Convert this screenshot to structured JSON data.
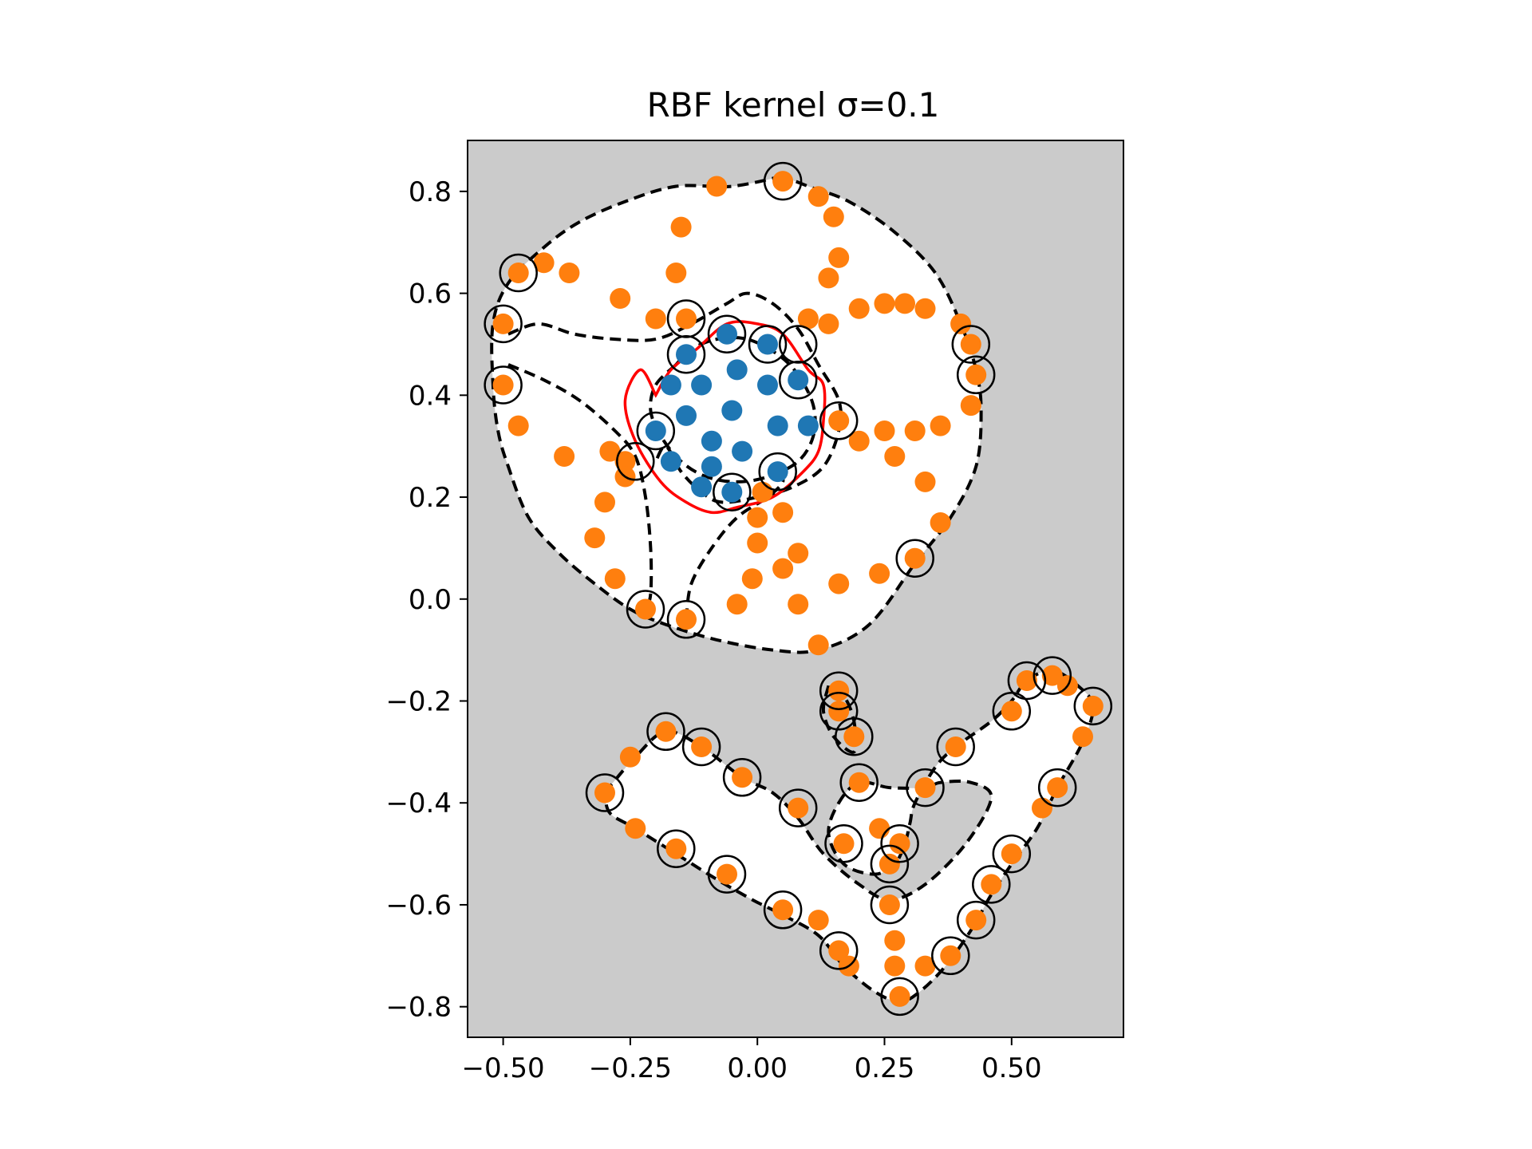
{
  "chart_data": {
    "type": "scatter",
    "title": "RBF kernel σ=0.1",
    "xlabel": "",
    "ylabel": "",
    "xlim": [
      -0.57,
      0.72
    ],
    "ylim": [
      -0.86,
      0.9
    ],
    "xticks": [
      -0.5,
      -0.25,
      0.0,
      0.25,
      0.5
    ],
    "xtick_labels": [
      "−0.50",
      "−0.25",
      "0.00",
      "0.25",
      "0.50"
    ],
    "yticks": [
      0.8,
      0.6,
      0.4,
      0.2,
      0.0,
      -0.2,
      -0.4,
      -0.6,
      -0.8
    ],
    "ytick_labels": [
      "0.8",
      "0.6",
      "0.4",
      "0.2",
      "0.0",
      "−0.2",
      "−0.4",
      "−0.6",
      "−0.8"
    ],
    "grid": false,
    "legend": "none",
    "colors": {
      "background": "#cbcbcb",
      "region_inside": "#ffffff",
      "class_inner": "#1f77b4",
      "class_outer": "#ff7f0e",
      "decision_boundary": "#ff0000",
      "margin_contour": "#000000",
      "support_vector_ring": "#000000"
    },
    "series": [
      {
        "class": "inner",
        "points": [
          [
            -0.06,
            0.52
          ],
          [
            0.02,
            0.5
          ],
          [
            -0.14,
            0.48
          ],
          [
            -0.04,
            0.45
          ],
          [
            0.08,
            0.43
          ],
          [
            -0.17,
            0.42
          ],
          [
            -0.11,
            0.42
          ],
          [
            0.02,
            0.42
          ],
          [
            -0.14,
            0.36
          ],
          [
            -0.05,
            0.37
          ],
          [
            0.1,
            0.34
          ],
          [
            -0.2,
            0.33
          ],
          [
            0.04,
            0.34
          ],
          [
            -0.09,
            0.31
          ],
          [
            -0.03,
            0.29
          ],
          [
            -0.17,
            0.27
          ],
          [
            -0.09,
            0.26
          ],
          [
            0.04,
            0.25
          ],
          [
            -0.11,
            0.22
          ],
          [
            -0.05,
            0.21
          ]
        ]
      },
      {
        "class": "outer_ring",
        "points": [
          [
            0.05,
            0.82
          ],
          [
            -0.08,
            0.81
          ],
          [
            0.12,
            0.79
          ],
          [
            0.15,
            0.75
          ],
          [
            -0.15,
            0.73
          ],
          [
            0.16,
            0.67
          ],
          [
            -0.42,
            0.66
          ],
          [
            -0.47,
            0.64
          ],
          [
            -0.37,
            0.64
          ],
          [
            -0.16,
            0.64
          ],
          [
            0.14,
            0.63
          ],
          [
            -0.27,
            0.59
          ],
          [
            0.25,
            0.58
          ],
          [
            0.29,
            0.58
          ],
          [
            0.2,
            0.57
          ],
          [
            0.33,
            0.57
          ],
          [
            -0.5,
            0.54
          ],
          [
            -0.2,
            0.55
          ],
          [
            -0.14,
            0.55
          ],
          [
            0.1,
            0.55
          ],
          [
            0.14,
            0.54
          ],
          [
            0.4,
            0.54
          ],
          [
            0.42,
            0.5
          ],
          [
            0.43,
            0.44
          ],
          [
            -0.5,
            0.42
          ],
          [
            0.42,
            0.38
          ],
          [
            0.16,
            0.35
          ],
          [
            -0.47,
            0.34
          ],
          [
            0.31,
            0.33
          ],
          [
            0.36,
            0.34
          ],
          [
            0.25,
            0.33
          ],
          [
            0.2,
            0.31
          ],
          [
            -0.38,
            0.28
          ],
          [
            -0.29,
            0.29
          ],
          [
            -0.26,
            0.27
          ],
          [
            0.27,
            0.28
          ],
          [
            -0.26,
            0.24
          ],
          [
            0.33,
            0.23
          ],
          [
            0.01,
            0.21
          ],
          [
            -0.3,
            0.19
          ],
          [
            0.05,
            0.17
          ],
          [
            0.0,
            0.16
          ],
          [
            0.36,
            0.15
          ],
          [
            -0.32,
            0.12
          ],
          [
            0.0,
            0.11
          ],
          [
            0.08,
            0.09
          ],
          [
            0.31,
            0.08
          ],
          [
            0.05,
            0.06
          ],
          [
            -0.28,
            0.04
          ],
          [
            -0.01,
            0.04
          ],
          [
            0.16,
            0.03
          ],
          [
            0.24,
            0.05
          ],
          [
            -0.22,
            -0.02
          ],
          [
            -0.04,
            -0.01
          ],
          [
            0.08,
            -0.01
          ],
          [
            -0.14,
            -0.04
          ],
          [
            0.12,
            -0.09
          ]
        ]
      },
      {
        "class": "lower_shape",
        "points": [
          [
            0.16,
            -0.18
          ],
          [
            0.53,
            -0.16
          ],
          [
            0.58,
            -0.15
          ],
          [
            0.61,
            -0.17
          ],
          [
            0.66,
            -0.21
          ],
          [
            0.5,
            -0.22
          ],
          [
            0.16,
            -0.22
          ],
          [
            0.19,
            -0.27
          ],
          [
            -0.18,
            -0.26
          ],
          [
            0.64,
            -0.27
          ],
          [
            -0.11,
            -0.29
          ],
          [
            0.39,
            -0.29
          ],
          [
            -0.25,
            -0.31
          ],
          [
            -0.03,
            -0.35
          ],
          [
            0.2,
            -0.36
          ],
          [
            0.33,
            -0.37
          ],
          [
            0.59,
            -0.37
          ],
          [
            -0.3,
            -0.38
          ],
          [
            0.08,
            -0.41
          ],
          [
            0.56,
            -0.41
          ],
          [
            -0.24,
            -0.45
          ],
          [
            0.24,
            -0.45
          ],
          [
            0.28,
            -0.48
          ],
          [
            0.17,
            -0.48
          ],
          [
            -0.16,
            -0.49
          ],
          [
            0.5,
            -0.5
          ],
          [
            0.26,
            -0.52
          ],
          [
            -0.06,
            -0.54
          ],
          [
            0.46,
            -0.56
          ],
          [
            0.26,
            -0.6
          ],
          [
            0.05,
            -0.61
          ],
          [
            0.43,
            -0.63
          ],
          [
            0.12,
            -0.63
          ],
          [
            0.27,
            -0.67
          ],
          [
            0.16,
            -0.69
          ],
          [
            0.38,
            -0.7
          ],
          [
            0.27,
            -0.72
          ],
          [
            0.18,
            -0.72
          ],
          [
            0.33,
            -0.72
          ],
          [
            0.28,
            -0.78
          ]
        ]
      }
    ],
    "support_vectors": [
      [
        0.05,
        0.82
      ],
      [
        -0.47,
        0.64
      ],
      [
        -0.5,
        0.54
      ],
      [
        -0.5,
        0.42
      ],
      [
        0.42,
        0.5
      ],
      [
        0.43,
        0.44
      ],
      [
        0.31,
        0.08
      ],
      [
        -0.22,
        -0.02
      ],
      [
        -0.14,
        -0.04
      ],
      [
        -0.14,
        0.55
      ],
      [
        -0.14,
        0.48
      ],
      [
        -0.06,
        0.52
      ],
      [
        0.02,
        0.5
      ],
      [
        0.08,
        0.5
      ],
      [
        0.08,
        0.43
      ],
      [
        0.16,
        0.35
      ],
      [
        -0.2,
        0.33
      ],
      [
        -0.24,
        0.27
      ],
      [
        -0.05,
        0.21
      ],
      [
        0.04,
        0.25
      ],
      [
        0.16,
        -0.18
      ],
      [
        0.53,
        -0.16
      ],
      [
        0.58,
        -0.15
      ],
      [
        0.66,
        -0.21
      ],
      [
        0.5,
        -0.22
      ],
      [
        0.16,
        -0.22
      ],
      [
        0.19,
        -0.27
      ],
      [
        -0.18,
        -0.26
      ],
      [
        -0.11,
        -0.29
      ],
      [
        0.39,
        -0.29
      ],
      [
        -0.03,
        -0.35
      ],
      [
        0.2,
        -0.36
      ],
      [
        0.33,
        -0.37
      ],
      [
        0.59,
        -0.37
      ],
      [
        -0.3,
        -0.38
      ],
      [
        0.08,
        -0.41
      ],
      [
        0.28,
        -0.48
      ],
      [
        0.17,
        -0.48
      ],
      [
        -0.16,
        -0.49
      ],
      [
        0.5,
        -0.5
      ],
      [
        0.26,
        -0.52
      ],
      [
        -0.06,
        -0.54
      ],
      [
        0.46,
        -0.56
      ],
      [
        0.26,
        -0.6
      ],
      [
        0.05,
        -0.61
      ],
      [
        0.43,
        -0.63
      ],
      [
        0.16,
        -0.69
      ],
      [
        0.38,
        -0.7
      ],
      [
        0.28,
        -0.78
      ]
    ],
    "decision_boundary_line": [
      [
        -0.2,
        0.4
      ],
      [
        -0.17,
        0.45
      ],
      [
        -0.12,
        0.49
      ],
      [
        -0.06,
        0.54
      ],
      [
        0.0,
        0.54
      ],
      [
        0.05,
        0.52
      ],
      [
        0.1,
        0.45
      ],
      [
        0.13,
        0.42
      ],
      [
        0.13,
        0.35
      ],
      [
        0.12,
        0.29
      ],
      [
        0.09,
        0.25
      ],
      [
        0.03,
        0.2
      ],
      [
        -0.04,
        0.18
      ],
      [
        -0.09,
        0.17
      ],
      [
        -0.14,
        0.19
      ],
      [
        -0.19,
        0.23
      ],
      [
        -0.24,
        0.31
      ],
      [
        -0.26,
        0.39
      ],
      [
        -0.23,
        0.45
      ],
      [
        -0.2,
        0.4
      ]
    ],
    "margin_contours": [
      [
        [
          0.05,
          0.83
        ],
        [
          -0.05,
          0.81
        ],
        [
          -0.16,
          0.81
        ],
        [
          -0.26,
          0.78
        ],
        [
          -0.35,
          0.74
        ],
        [
          -0.42,
          0.69
        ],
        [
          -0.49,
          0.62
        ],
        [
          -0.52,
          0.54
        ],
        [
          -0.52,
          0.42
        ],
        [
          -0.51,
          0.33
        ],
        [
          -0.49,
          0.26
        ],
        [
          -0.45,
          0.16
        ],
        [
          -0.39,
          0.09
        ],
        [
          -0.32,
          0.03
        ],
        [
          -0.25,
          -0.02
        ],
        [
          -0.18,
          -0.05
        ],
        [
          -0.08,
          -0.08
        ],
        [
          0.03,
          -0.1
        ],
        [
          0.12,
          -0.1
        ],
        [
          0.22,
          -0.05
        ],
        [
          0.31,
          0.07
        ],
        [
          0.38,
          0.16
        ],
        [
          0.43,
          0.26
        ],
        [
          0.44,
          0.37
        ],
        [
          0.43,
          0.45
        ],
        [
          0.4,
          0.54
        ],
        [
          0.35,
          0.64
        ],
        [
          0.27,
          0.72
        ],
        [
          0.18,
          0.78
        ],
        [
          0.1,
          0.81
        ],
        [
          0.05,
          0.83
        ]
      ],
      [
        [
          -0.49,
          0.52
        ],
        [
          -0.43,
          0.54
        ],
        [
          -0.36,
          0.52
        ],
        [
          -0.28,
          0.51
        ],
        [
          -0.2,
          0.51
        ],
        [
          -0.13,
          0.54
        ],
        [
          -0.06,
          0.58
        ],
        [
          -0.02,
          0.6
        ],
        [
          0.03,
          0.58
        ],
        [
          0.08,
          0.53
        ],
        [
          0.12,
          0.46
        ],
        [
          0.16,
          0.39
        ],
        [
          0.16,
          0.33
        ],
        [
          0.13,
          0.26
        ],
        [
          0.07,
          0.22
        ],
        [
          0.0,
          0.2
        ],
        [
          -0.07,
          0.19
        ],
        [
          -0.11,
          0.21
        ],
        [
          -0.15,
          0.25
        ],
        [
          -0.18,
          0.3
        ],
        [
          -0.2,
          0.27
        ]
      ],
      [
        [
          -0.49,
          0.46
        ],
        [
          -0.42,
          0.43
        ],
        [
          -0.35,
          0.39
        ],
        [
          -0.28,
          0.33
        ],
        [
          -0.24,
          0.28
        ],
        [
          -0.22,
          0.2
        ],
        [
          -0.21,
          0.1
        ],
        [
          -0.21,
          0.01
        ],
        [
          -0.22,
          -0.02
        ]
      ],
      [
        [
          -0.14,
          -0.04
        ],
        [
          -0.13,
          0.03
        ],
        [
          -0.09,
          0.1
        ],
        [
          -0.04,
          0.16
        ],
        [
          0.02,
          0.2
        ],
        [
          0.05,
          0.23
        ],
        [
          0.04,
          0.25
        ]
      ],
      [
        [
          -0.16,
          0.46
        ],
        [
          -0.2,
          0.42
        ],
        [
          -0.21,
          0.37
        ],
        [
          -0.19,
          0.32
        ],
        [
          -0.15,
          0.27
        ],
        [
          -0.1,
          0.24
        ],
        [
          -0.04,
          0.23
        ],
        [
          0.02,
          0.24
        ],
        [
          0.08,
          0.27
        ],
        [
          0.11,
          0.32
        ],
        [
          0.11,
          0.38
        ],
        [
          0.08,
          0.44
        ],
        [
          0.04,
          0.48
        ],
        [
          -0.02,
          0.51
        ],
        [
          -0.08,
          0.51
        ],
        [
          -0.13,
          0.49
        ],
        [
          -0.16,
          0.46
        ]
      ],
      [
        [
          -0.3,
          -0.38
        ],
        [
          -0.24,
          -0.31
        ],
        [
          -0.18,
          -0.26
        ],
        [
          -0.11,
          -0.29
        ],
        [
          -0.03,
          -0.35
        ],
        [
          0.03,
          -0.38
        ],
        [
          0.08,
          -0.43
        ],
        [
          0.13,
          -0.5
        ],
        [
          0.2,
          -0.56
        ],
        [
          0.26,
          -0.59
        ],
        [
          0.33,
          -0.56
        ],
        [
          0.41,
          -0.48
        ],
        [
          0.46,
          -0.39
        ],
        [
          0.42,
          -0.36
        ],
        [
          0.36,
          -0.36
        ],
        [
          0.33,
          -0.37
        ],
        [
          0.26,
          -0.37
        ],
        [
          0.2,
          -0.36
        ],
        [
          0.16,
          -0.4
        ],
        [
          0.14,
          -0.46
        ],
        [
          0.17,
          -0.52
        ],
        [
          0.23,
          -0.54
        ],
        [
          0.27,
          -0.52
        ],
        [
          0.29,
          -0.48
        ],
        [
          0.3,
          -0.44
        ],
        [
          0.31,
          -0.4
        ],
        [
          0.35,
          -0.33
        ],
        [
          0.39,
          -0.29
        ],
        [
          0.46,
          -0.24
        ],
        [
          0.5,
          -0.2
        ],
        [
          0.53,
          -0.16
        ],
        [
          0.58,
          -0.14
        ],
        [
          0.63,
          -0.17
        ],
        [
          0.66,
          -0.21
        ],
        [
          0.64,
          -0.28
        ],
        [
          0.59,
          -0.37
        ],
        [
          0.55,
          -0.45
        ],
        [
          0.5,
          -0.52
        ],
        [
          0.46,
          -0.58
        ],
        [
          0.42,
          -0.65
        ],
        [
          0.37,
          -0.72
        ],
        [
          0.32,
          -0.77
        ],
        [
          0.28,
          -0.79
        ],
        [
          0.23,
          -0.77
        ],
        [
          0.17,
          -0.72
        ],
        [
          0.12,
          -0.66
        ],
        [
          0.05,
          -0.62
        ],
        [
          -0.01,
          -0.59
        ],
        [
          -0.08,
          -0.55
        ],
        [
          -0.16,
          -0.5
        ],
        [
          -0.24,
          -0.45
        ],
        [
          -0.29,
          -0.42
        ],
        [
          -0.3,
          -0.38
        ]
      ],
      [
        [
          0.14,
          -0.17
        ],
        [
          0.13,
          -0.22
        ],
        [
          0.15,
          -0.27
        ],
        [
          0.19,
          -0.3
        ],
        [
          0.19,
          -0.24
        ],
        [
          0.17,
          -0.19
        ],
        [
          0.14,
          -0.17
        ]
      ]
    ]
  }
}
